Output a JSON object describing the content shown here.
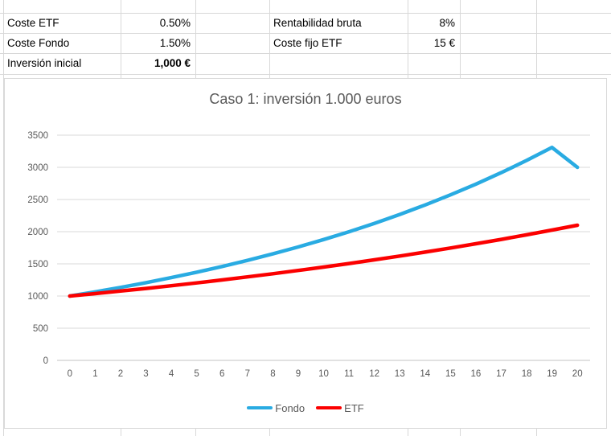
{
  "table": {
    "rows": [
      {
        "label": "Coste ETF",
        "value": "0.50%",
        "label2": "Rentabilidad bruta",
        "value2": "8%"
      },
      {
        "label": "Coste Fondo",
        "value": "1.50%",
        "label2": "Coste fijo ETF",
        "value2": "15 €"
      },
      {
        "label": "Inversión inicial",
        "value": "1,000 €",
        "label2": "",
        "value2": ""
      }
    ]
  },
  "chart_data": {
    "type": "line",
    "title": "Caso 1: inversión 1.000 euros",
    "x": [
      0,
      1,
      2,
      3,
      4,
      5,
      6,
      7,
      8,
      9,
      10,
      11,
      12,
      13,
      14,
      15,
      16,
      17,
      18,
      19,
      20
    ],
    "series": [
      {
        "name": "Fondo",
        "color": "#29ABE2",
        "values": [
          1000,
          1065,
          1134,
          1208,
          1286,
          1370,
          1459,
          1554,
          1655,
          1763,
          1877,
          1999,
          2129,
          2267,
          2415,
          2572,
          2739,
          2917,
          3107,
          3309,
          3000
        ]
      },
      {
        "name": "ETF",
        "color": "#FB0000",
        "values": [
          1000,
          1038,
          1077,
          1118,
          1160,
          1204,
          1250,
          1297,
          1346,
          1397,
          1450,
          1505,
          1562,
          1621,
          1682,
          1746,
          1812,
          1880,
          1951,
          2025,
          2100
        ]
      }
    ],
    "ylim": [
      0,
      3500
    ],
    "ytick_step": 500,
    "grid": true,
    "legend_position": "bottom",
    "xlabel": "",
    "ylabel": ""
  },
  "colors": {
    "sheet_gridline": "#d8d8d8",
    "chart_border": "#d9d9d9",
    "plot_gridline": "#d9d9d9",
    "axis_line": "#c3c3c3",
    "chart_text": "#595959"
  }
}
